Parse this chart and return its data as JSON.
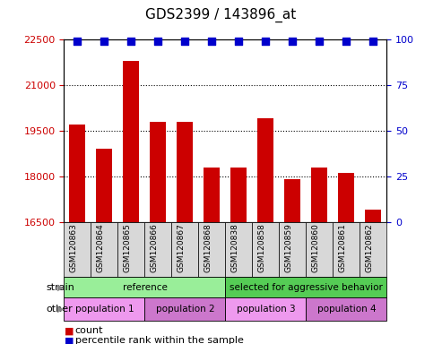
{
  "title": "GDS2399 / 143896_at",
  "samples": [
    "GSM120863",
    "GSM120864",
    "GSM120865",
    "GSM120866",
    "GSM120867",
    "GSM120868",
    "GSM120838",
    "GSM120858",
    "GSM120859",
    "GSM120860",
    "GSM120861",
    "GSM120862"
  ],
  "counts": [
    19700,
    18900,
    21800,
    19800,
    19800,
    18300,
    18300,
    19900,
    17900,
    18300,
    18100,
    16900
  ],
  "percentile_ranks": [
    99,
    99,
    99,
    99,
    99,
    99,
    99,
    99,
    99,
    99,
    99,
    99
  ],
  "bar_color": "#cc0000",
  "dot_color": "#0000cc",
  "ylim_left": [
    16500,
    22500
  ],
  "ylim_right": [
    0,
    100
  ],
  "yticks_left": [
    16500,
    18000,
    19500,
    21000,
    22500
  ],
  "yticks_right": [
    0,
    25,
    50,
    75,
    100
  ],
  "strain_groups": [
    {
      "label": "reference",
      "start": 0,
      "end": 6,
      "color": "#99ee99"
    },
    {
      "label": "selected for aggressive behavior",
      "start": 6,
      "end": 12,
      "color": "#55cc55"
    }
  ],
  "other_groups": [
    {
      "label": "population 1",
      "start": 0,
      "end": 3,
      "color": "#ee99ee"
    },
    {
      "label": "population 2",
      "start": 3,
      "end": 6,
      "color": "#cc77cc"
    },
    {
      "label": "population 3",
      "start": 6,
      "end": 9,
      "color": "#ee99ee"
    },
    {
      "label": "population 4",
      "start": 9,
      "end": 12,
      "color": "#cc77cc"
    }
  ],
  "strain_label": "strain",
  "other_label": "other",
  "legend_count_label": "count",
  "legend_pct_label": "percentile rank within the sample",
  "grid_color": "#000000",
  "background_color": "#ffffff",
  "tick_label_color_left": "#cc0000",
  "tick_label_color_right": "#0000cc",
  "bar_width": 0.6,
  "dot_size": 35,
  "xlabel_gray": "#cccccc",
  "col_box_color": "#d8d8d8"
}
